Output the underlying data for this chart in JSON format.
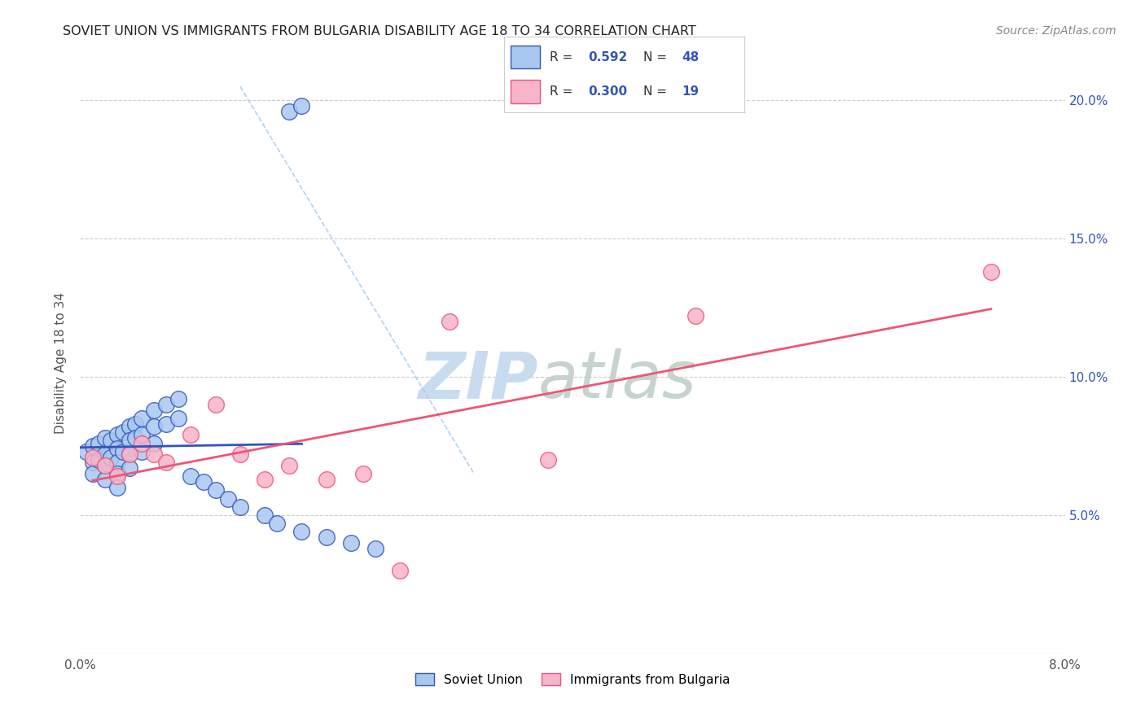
{
  "title": "SOVIET UNION VS IMMIGRANTS FROM BULGARIA DISABILITY AGE 18 TO 34 CORRELATION CHART",
  "source": "Source: ZipAtlas.com",
  "ylabel": "Disability Age 18 to 34",
  "xmin": 0.0,
  "xmax": 0.08,
  "ymin": 0.0,
  "ymax": 0.21,
  "series1_label": "Soviet Union",
  "series2_label": "Immigrants from Bulgaria",
  "R1": 0.592,
  "N1": 48,
  "R2": 0.3,
  "N2": 19,
  "color1": "#A8C8F0",
  "color2": "#F8B4C8",
  "line_color1": "#3355BB",
  "line_color2": "#EE5577",
  "dash_color": "#AACCEE",
  "soviet_x": [
    0.0005,
    0.001,
    0.001,
    0.001,
    0.0015,
    0.0015,
    0.002,
    0.002,
    0.002,
    0.002,
    0.0025,
    0.0025,
    0.003,
    0.003,
    0.003,
    0.003,
    0.003,
    0.0035,
    0.0035,
    0.004,
    0.004,
    0.004,
    0.004,
    0.0045,
    0.0045,
    0.005,
    0.005,
    0.005,
    0.006,
    0.006,
    0.006,
    0.007,
    0.007,
    0.008,
    0.008,
    0.009,
    0.01,
    0.011,
    0.012,
    0.013,
    0.015,
    0.016,
    0.018,
    0.02,
    0.022,
    0.024,
    0.017,
    0.018
  ],
  "soviet_y": [
    0.073,
    0.075,
    0.069,
    0.065,
    0.076,
    0.07,
    0.078,
    0.072,
    0.068,
    0.063,
    0.077,
    0.071,
    0.079,
    0.074,
    0.069,
    0.065,
    0.06,
    0.08,
    0.073,
    0.082,
    0.077,
    0.072,
    0.067,
    0.083,
    0.078,
    0.085,
    0.079,
    0.073,
    0.088,
    0.082,
    0.076,
    0.09,
    0.083,
    0.092,
    0.085,
    0.064,
    0.062,
    0.059,
    0.056,
    0.053,
    0.05,
    0.047,
    0.044,
    0.042,
    0.04,
    0.038,
    0.196,
    0.198
  ],
  "bulgaria_x": [
    0.001,
    0.002,
    0.003,
    0.004,
    0.005,
    0.006,
    0.007,
    0.009,
    0.011,
    0.013,
    0.015,
    0.017,
    0.02,
    0.023,
    0.026,
    0.03,
    0.038,
    0.05,
    0.074
  ],
  "bulgaria_y": [
    0.071,
    0.068,
    0.064,
    0.072,
    0.076,
    0.072,
    0.069,
    0.079,
    0.09,
    0.072,
    0.063,
    0.068,
    0.063,
    0.065,
    0.03,
    0.12,
    0.07,
    0.122,
    0.138
  ]
}
